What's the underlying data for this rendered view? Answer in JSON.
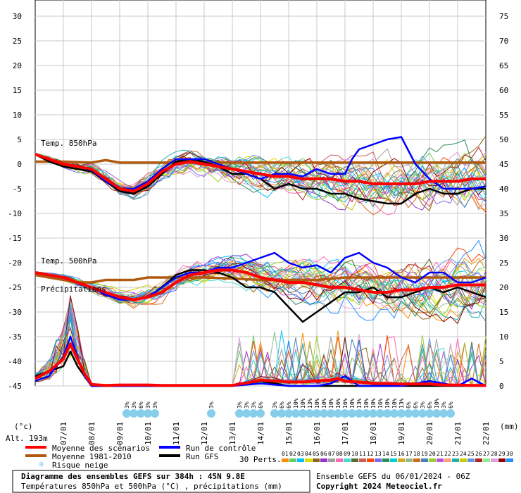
{
  "chart_data": {
    "type": "line",
    "title": "Diagramme des ensembles GEFS sur 384h : 45N 9.8E",
    "subtitle": "Températures 850hPa et 500hPa (°C) , précipitations (mm)",
    "ylabel_left": "(°c)",
    "ylabel_right": "(mm)",
    "altitude": "Alt. 193m",
    "ylim_left": [
      -45,
      30
    ],
    "ylim_right": [
      0,
      75
    ],
    "y_ticks_left": [
      "30",
      "25",
      "20",
      "15",
      "10",
      "5",
      "0",
      "-5",
      "-10",
      "-15",
      "-20",
      "-25",
      "-30",
      "-35",
      "-40",
      "-45"
    ],
    "y_ticks_right": [
      "75",
      "70",
      "65",
      "60",
      "55",
      "50",
      "45",
      "40",
      "35",
      "30",
      "25",
      "20",
      "15",
      "10",
      "5",
      "0"
    ],
    "x_ticks": [
      "07/01",
      "08/01",
      "09/01",
      "10/01",
      "11/01",
      "12/01",
      "13/01",
      "14/01",
      "15/01",
      "16/01",
      "17/01",
      "18/01",
      "19/01",
      "20/01",
      "21/01",
      "22/01"
    ],
    "panel_labels": [
      "Temp. 850hPa",
      "Temp. 500hPa",
      "Précipitations"
    ],
    "grid": true,
    "legend": [
      {
        "label": "Moyenne des scénarios",
        "color": "#ff0000"
      },
      {
        "label": "Moyenne 1981-2010",
        "color": "#b05a10"
      },
      {
        "label": "Risque neige",
        "color": "#87ceeb"
      },
      {
        "label": "Run de contrôle",
        "color": "#0000ff"
      },
      {
        "label": "Run GFS",
        "color": "#000000"
      }
    ],
    "perts_label": "30 Perts.",
    "pert_ids": [
      "01",
      "02",
      "03",
      "04",
      "05",
      "06",
      "07",
      "08",
      "09",
      "10",
      "11",
      "12",
      "13",
      "14",
      "15",
      "16",
      "17",
      "18",
      "19",
      "20",
      "21",
      "22",
      "23",
      "24",
      "25",
      "26",
      "27",
      "28",
      "29",
      "30"
    ],
    "pert_colors": [
      "#ff8c00",
      "#66cc66",
      "#00bfff",
      "#dddd00",
      "#8b6914",
      "#9932cc",
      "#a0a0a0",
      "#ff69b4",
      "#40e0d0",
      "#556b2f",
      "#cd5c5c",
      "#ff4500",
      "#7b68ee",
      "#2e8b57",
      "#00ced1",
      "#daa520",
      "#8fbc8f",
      "#d2691e",
      "#4682b4",
      "#9acd32",
      "#ba55d3",
      "#ffa07a",
      "#20b2aa",
      "#cccc00",
      "#6495ed",
      "#b22222",
      "#90ee90",
      "#dda0dd",
      "#8b0000",
      "#1e90ff"
    ],
    "snow_risk": [
      {
        "day": 3.25,
        "pct": "3%"
      },
      {
        "day": 3.5,
        "pct": "3%"
      },
      {
        "day": 3.75,
        "pct": "6%"
      },
      {
        "day": 4.0,
        "pct": "3%"
      },
      {
        "day": 4.25,
        "pct": "3%"
      },
      {
        "day": 6.25,
        "pct": "3%"
      },
      {
        "day": 7.25,
        "pct": "3%"
      },
      {
        "day": 7.5,
        "pct": "3%"
      },
      {
        "day": 7.75,
        "pct": "3%"
      },
      {
        "day": 8.0,
        "pct": "6%"
      },
      {
        "day": 8.5,
        "pct": "3%"
      },
      {
        "day": 8.75,
        "pct": "6%"
      },
      {
        "day": 9.0,
        "pct": "6%"
      },
      {
        "day": 9.25,
        "pct": "10%"
      },
      {
        "day": 9.5,
        "pct": "10%"
      },
      {
        "day": 9.75,
        "pct": "13%"
      },
      {
        "day": 10.0,
        "pct": "10%"
      },
      {
        "day": 10.25,
        "pct": "10%"
      },
      {
        "day": 10.5,
        "pct": "10%"
      },
      {
        "day": 10.75,
        "pct": "16%"
      },
      {
        "day": 11.0,
        "pct": "16%"
      },
      {
        "day": 11.25,
        "pct": "10%"
      },
      {
        "day": 11.5,
        "pct": "13%"
      },
      {
        "day": 11.75,
        "pct": "10%"
      },
      {
        "day": 12.0,
        "pct": "10%"
      },
      {
        "day": 12.25,
        "pct": "16%"
      },
      {
        "day": 12.5,
        "pct": "10%"
      },
      {
        "day": 12.75,
        "pct": "10%"
      },
      {
        "day": 13.0,
        "pct": "13%"
      },
      {
        "day": 13.25,
        "pct": "6%"
      },
      {
        "day": 13.5,
        "pct": "6%"
      },
      {
        "day": 13.75,
        "pct": "3%"
      },
      {
        "day": 14.0,
        "pct": "6%"
      },
      {
        "day": 14.25,
        "pct": "10%"
      },
      {
        "day": 14.5,
        "pct": "3%"
      },
      {
        "day": 14.75,
        "pct": "6%"
      }
    ],
    "series": [
      {
        "name": "Moyenne des scénarios",
        "panel": "850",
        "x": [
          0,
          0.5,
          1,
          1.5,
          2,
          2.5,
          3,
          3.5,
          4,
          4.5,
          5,
          5.5,
          6,
          6.5,
          7,
          7.5,
          8,
          8.5,
          9,
          9.5,
          10,
          10.5,
          11,
          11.5,
          12,
          12.5,
          13,
          13.5,
          14,
          14.5,
          15,
          15.5,
          16
        ],
        "values": [
          2,
          1,
          0,
          -0.5,
          -1,
          -3,
          -5,
          -5.5,
          -4,
          -1.5,
          0,
          0.5,
          0,
          -0.5,
          -1,
          -1.5,
          -2,
          -2.5,
          -2.5,
          -3,
          -3,
          -3,
          -3.5,
          -3.5,
          -4,
          -4,
          -4,
          -4,
          -3.5,
          -3.5,
          -3.5,
          -3,
          -3
        ]
      },
      {
        "name": "Moyenne 1981-2010",
        "panel": "850",
        "x": [
          0,
          1,
          2,
          2.5,
          3,
          4,
          5,
          6,
          7,
          8,
          9,
          10,
          11,
          12,
          13,
          14,
          15,
          16
        ],
        "values": [
          0.5,
          0.5,
          0.3,
          0.8,
          0.3,
          0.3,
          0.3,
          0.3,
          0.3,
          0.3,
          0.3,
          0.3,
          0.3,
          0.3,
          0.3,
          0.3,
          0.3,
          0.3
        ]
      },
      {
        "name": "Run de contrôle",
        "panel": "850",
        "x": [
          0,
          0.5,
          1,
          1.5,
          2,
          2.5,
          3,
          3.5,
          4,
          4.5,
          5,
          5.5,
          6,
          6.5,
          7,
          7.5,
          8,
          8.5,
          9,
          9.5,
          10,
          10.5,
          11,
          11.25,
          11.5,
          12,
          12.5,
          13,
          13.5,
          14,
          14.5,
          15,
          15.5,
          16
        ],
        "values": [
          2,
          1,
          0,
          -0.5,
          -1.2,
          -3.5,
          -5,
          -5,
          -3.5,
          -1,
          1,
          1,
          1,
          0,
          -1,
          -2,
          -3,
          -2,
          -2,
          -2.5,
          -1,
          -2,
          -2,
          1,
          3,
          4,
          5,
          5.5,
          0,
          -3,
          -5,
          -5,
          -5,
          -4.5
        ]
      },
      {
        "name": "Run GFS",
        "panel": "850",
        "x": [
          0,
          0.5,
          1,
          1.5,
          2,
          2.5,
          3,
          3.5,
          4,
          4.5,
          5,
          5.5,
          6,
          6.5,
          7,
          7.5,
          8,
          8.5,
          9,
          9.5,
          10,
          10.5,
          11,
          11.5,
          12,
          12.5,
          13,
          13.5,
          14,
          14.5,
          15,
          15.5,
          16
        ],
        "values": [
          2,
          0.5,
          -0.5,
          -1,
          -1.5,
          -3.5,
          -5.5,
          -6,
          -4.5,
          -2,
          0.5,
          1,
          0.5,
          -0.5,
          -2,
          -2,
          -3,
          -5,
          -4,
          -5,
          -5,
          -6,
          -6,
          -7,
          -7.5,
          -8,
          -8,
          -6,
          -5,
          -6,
          -6,
          -5,
          -5
        ]
      },
      {
        "name": "Moyenne des scénarios",
        "panel": "500",
        "x": [
          0,
          0.5,
          1,
          1.5,
          2,
          2.5,
          3,
          3.5,
          4,
          4.5,
          5,
          5.5,
          6,
          6.5,
          7,
          7.5,
          8,
          8.5,
          9,
          9.5,
          10,
          10.5,
          11,
          11.5,
          12,
          12.5,
          13,
          13.5,
          14,
          14.5,
          15,
          15.5,
          16
        ],
        "values": [
          -22,
          -22.5,
          -23,
          -24,
          -25,
          -26,
          -27,
          -27.5,
          -27,
          -26,
          -24,
          -22.5,
          -22,
          -21.5,
          -21.5,
          -22,
          -23,
          -23.5,
          -24,
          -24,
          -24.5,
          -25,
          -25,
          -25.5,
          -26,
          -26,
          -25.5,
          -25.5,
          -25,
          -25,
          -24.5,
          -24.5,
          -24.5
        ]
      },
      {
        "name": "Moyenne 1981-2010",
        "panel": "500",
        "x": [
          0,
          0.5,
          1,
          1.5,
          2,
          2.5,
          3,
          3.5,
          4,
          4.5,
          5,
          6,
          7,
          8,
          9,
          10,
          11,
          12,
          13,
          14,
          15,
          16
        ],
        "values": [
          -22.5,
          -23,
          -23.5,
          -24,
          -24,
          -23.5,
          -23.5,
          -23.5,
          -23,
          -23,
          -23,
          -23,
          -23.2,
          -23.5,
          -23.5,
          -23.5,
          -23,
          -23,
          -23,
          -23,
          -23,
          -23
        ]
      },
      {
        "name": "Run de contrôle",
        "panel": "500",
        "x": [
          0,
          0.5,
          1,
          1.5,
          2,
          2.5,
          3,
          3.5,
          4,
          4.5,
          5,
          5.5,
          6,
          6.5,
          7,
          7.5,
          8,
          8.5,
          9,
          9.5,
          10,
          10.5,
          11,
          11.5,
          12,
          12.5,
          13,
          13.5,
          14,
          14.5,
          15,
          15.5,
          16
        ],
        "values": [
          -22,
          -22.5,
          -23,
          -24,
          -25,
          -26.5,
          -27.5,
          -27.5,
          -27,
          -25,
          -23,
          -22,
          -22,
          -21,
          -21,
          -20,
          -19,
          -18,
          -20,
          -21,
          -20.5,
          -22,
          -19,
          -18,
          -20,
          -21,
          -23,
          -24,
          -22,
          -22,
          -24,
          -24,
          -23
        ]
      },
      {
        "name": "Run GFS",
        "panel": "500",
        "x": [
          0,
          0.5,
          1,
          1.5,
          2,
          2.5,
          3,
          3.5,
          4,
          4.5,
          5,
          5.5,
          6,
          6.5,
          7,
          7.5,
          8,
          8.5,
          9,
          9.5,
          10,
          10.5,
          11,
          11.5,
          12,
          12.5,
          13,
          13.5,
          14,
          14.5,
          15,
          15.5,
          16
        ],
        "values": [
          -22,
          -22.5,
          -23,
          -24,
          -25,
          -26,
          -27,
          -27.5,
          -27,
          -25,
          -22.5,
          -21.5,
          -21.5,
          -22,
          -23,
          -25,
          -25,
          -26,
          -29,
          -32,
          -30,
          -28,
          -26,
          -26,
          -25,
          -27,
          -27,
          -26,
          -25,
          -26,
          -25,
          -26,
          -27
        ]
      },
      {
        "name": "Moyenne des scénarios",
        "panel": "precip",
        "x": [
          0,
          0.5,
          1,
          1.25,
          1.5,
          1.75,
          2,
          2.5,
          3,
          3.5,
          4,
          4.5,
          5,
          5.5,
          6,
          6.5,
          7,
          7.25,
          7.5,
          8,
          8.5,
          9,
          9.5,
          10,
          10.5,
          10.75,
          11,
          11.5,
          12,
          12.5,
          13,
          13.5,
          14,
          14.5,
          15,
          15.5,
          16
        ],
        "values": [
          1.5,
          3,
          5.5,
          8.5,
          5.5,
          2.5,
          0.3,
          0.1,
          0.2,
          0.2,
          0.2,
          0.1,
          0.1,
          0.1,
          0.1,
          0.1,
          0.1,
          0.4,
          0.6,
          1.2,
          1,
          0.8,
          0.8,
          1,
          1.2,
          1.5,
          1,
          0.8,
          0.5,
          0.5,
          0.4,
          0.4,
          0.4,
          0.2,
          0.2,
          0.1,
          0.1
        ]
      },
      {
        "name": "Run de contrôle",
        "panel": "precip",
        "x": [
          0,
          0.5,
          1,
          1.25,
          1.5,
          1.75,
          2,
          3,
          4,
          5,
          6,
          7,
          8,
          9,
          10,
          10.5,
          11,
          11.5,
          12,
          12.5,
          13,
          13.5,
          14,
          14.5,
          15,
          15.5,
          16
        ],
        "values": [
          1,
          2,
          6,
          10,
          6,
          2,
          0,
          0,
          0,
          0,
          0,
          0,
          0.5,
          0,
          0,
          0.5,
          2,
          0,
          0,
          0,
          0,
          0.5,
          1,
          0.5,
          0,
          1.5,
          0
        ]
      },
      {
        "name": "Run GFS",
        "panel": "precip",
        "x": [
          0,
          0.5,
          1,
          1.25,
          1.5,
          1.75,
          2,
          3,
          4,
          5,
          6,
          7,
          8,
          9,
          10,
          10.5,
          11,
          11.5,
          12,
          12.5,
          13,
          13.5,
          14,
          14.5,
          15,
          15.5,
          16
        ],
        "values": [
          2,
          3,
          4,
          7,
          4,
          2,
          0,
          0,
          0,
          0,
          0,
          0,
          1,
          0,
          0,
          0,
          0,
          0,
          0,
          0,
          0,
          0,
          0,
          0,
          0,
          0,
          0
        ]
      }
    ]
  },
  "footer": {
    "title": "Diagramme des ensembles GEFS sur 384h : 45N 9.8E",
    "subtitle": "Températures 850hPa et 500hPa (°C) , précipitations (mm)",
    "run_info": "Ensemble GEFS du 06/01/2024 - 06Z",
    "copyright": "Copyright 2024 Meteociel.fr"
  }
}
